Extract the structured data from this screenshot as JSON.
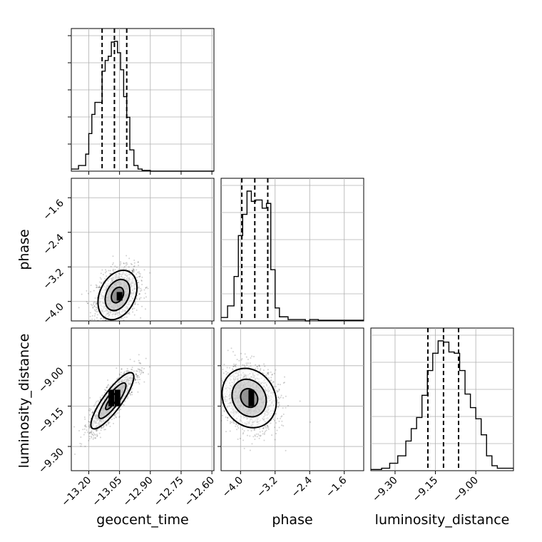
{
  "chart_data": {
    "type": "corner",
    "parameters": [
      "geocent_time",
      "phase",
      "luminosity_distance"
    ],
    "axis_labels": {
      "geocent_time": "geocent_time",
      "phase": "phase",
      "luminosity_distance": "luminosity_distance"
    },
    "grid": true,
    "ranges": {
      "geocent_time": [
        -13.285,
        -12.59
      ],
      "phase": [
        -4.45,
        -1.15
      ],
      "luminosity_distance": [
        -9.39,
        -8.86
      ]
    },
    "ticks": {
      "geocent_time": [
        {
          "value": -13.2,
          "label": "−13.20"
        },
        {
          "value": -13.05,
          "label": "−13.05"
        },
        {
          "value": -12.9,
          "label": "−12.90"
        },
        {
          "value": -12.75,
          "label": "−12.75"
        },
        {
          "value": -12.6,
          "label": "−12.60"
        }
      ],
      "phase": [
        {
          "value": -4.0,
          "label": "−4.0"
        },
        {
          "value": -3.2,
          "label": "−3.2"
        },
        {
          "value": -2.4,
          "label": "−2.4"
        },
        {
          "value": -1.6,
          "label": "−1.6"
        }
      ],
      "luminosity_distance": [
        {
          "value": -9.3,
          "label": "−9.30"
        },
        {
          "value": -9.15,
          "label": "−9.15"
        },
        {
          "value": -9.0,
          "label": "−9.00"
        }
      ]
    },
    "histograms": {
      "geocent_time": {
        "bin_edges": [
          -13.285,
          -13.25,
          -13.215,
          -13.2,
          -13.185,
          -13.17,
          -13.15,
          -13.135,
          -13.12,
          -13.105,
          -13.09,
          -13.075,
          -13.06,
          -13.045,
          -13.03,
          -13.015,
          -13.0,
          -12.98,
          -12.96,
          -12.94,
          -12.92,
          -12.9,
          -12.87,
          -12.59
        ],
        "counts": [
          3,
          8,
          24,
          53,
          80,
          97,
          97,
          141,
          156,
          162,
          182,
          183,
          167,
          143,
          105,
          76,
          30,
          8,
          3,
          1,
          1,
          0,
          0
        ],
        "quantiles": [
          -13.135,
          -13.075,
          -13.015
        ]
      },
      "phase": {
        "bin_edges": [
          -4.45,
          -4.3,
          -4.15,
          -4.05,
          -3.95,
          -3.85,
          -3.75,
          -3.65,
          -3.5,
          -3.4,
          -3.3,
          -3.2,
          -3.1,
          -3.0,
          -2.9,
          -2.5,
          -2.4,
          -2.2,
          -1.15
        ],
        "counts": [
          5,
          22,
          65,
          125,
          156,
          190,
          175,
          177,
          165,
          172,
          75,
          19,
          6,
          6,
          2,
          0,
          2,
          1
        ],
        "quantiles": [
          -3.97,
          -3.67,
          -3.37
        ]
      },
      "luminosity_distance": {
        "bin_edges": [
          -9.39,
          -9.35,
          -9.32,
          -9.29,
          -9.26,
          -9.24,
          -9.22,
          -9.2,
          -9.18,
          -9.16,
          -9.14,
          -9.12,
          -9.1,
          -9.08,
          -9.06,
          -9.04,
          -9.02,
          -9.0,
          -8.98,
          -8.96,
          -8.94,
          -8.92,
          -8.86
        ],
        "counts": [
          1,
          2,
          6,
          12,
          24,
          34,
          43,
          61,
          81,
          95,
          105,
          104,
          96,
          95,
          81,
          62,
          51,
          42,
          29,
          12,
          4,
          2
        ],
        "quantiles": [
          -9.178,
          -9.12,
          -9.064
        ]
      }
    },
    "pairs": [
      {
        "x": "geocent_time",
        "y": "phase",
        "center": [
          -13.06,
          -3.85
        ],
        "sigma": [
          0.05,
          0.3
        ],
        "rho": 0.3,
        "contour_levels_sigma": [
          0.6,
          1.2,
          1.9
        ],
        "core_cells": [
          [
            -13.05,
            -3.88
          ]
        ]
      },
      {
        "x": "geocent_time",
        "y": "luminosity_distance",
        "center": [
          -13.085,
          -9.13
        ],
        "sigma": [
          0.055,
          0.055
        ],
        "rho": 0.85,
        "contour_levels_sigma": [
          0.6,
          1.2,
          1.9
        ],
        "core_cells": [
          [
            -13.09,
            -9.105
          ],
          [
            -13.06,
            -9.105
          ],
          [
            -13.09,
            -9.135
          ],
          [
            -13.06,
            -9.135
          ]
        ]
      },
      {
        "x": "phase",
        "y": "luminosity_distance",
        "center": [
          -3.8,
          -9.12
        ],
        "sigma": [
          0.33,
          0.058
        ],
        "rho": -0.15,
        "contour_levels_sigma": [
          0.6,
          1.2,
          1.9
        ],
        "core_cells": [
          [
            -3.75,
            -9.105
          ],
          [
            -3.75,
            -9.135
          ]
        ]
      }
    ]
  }
}
